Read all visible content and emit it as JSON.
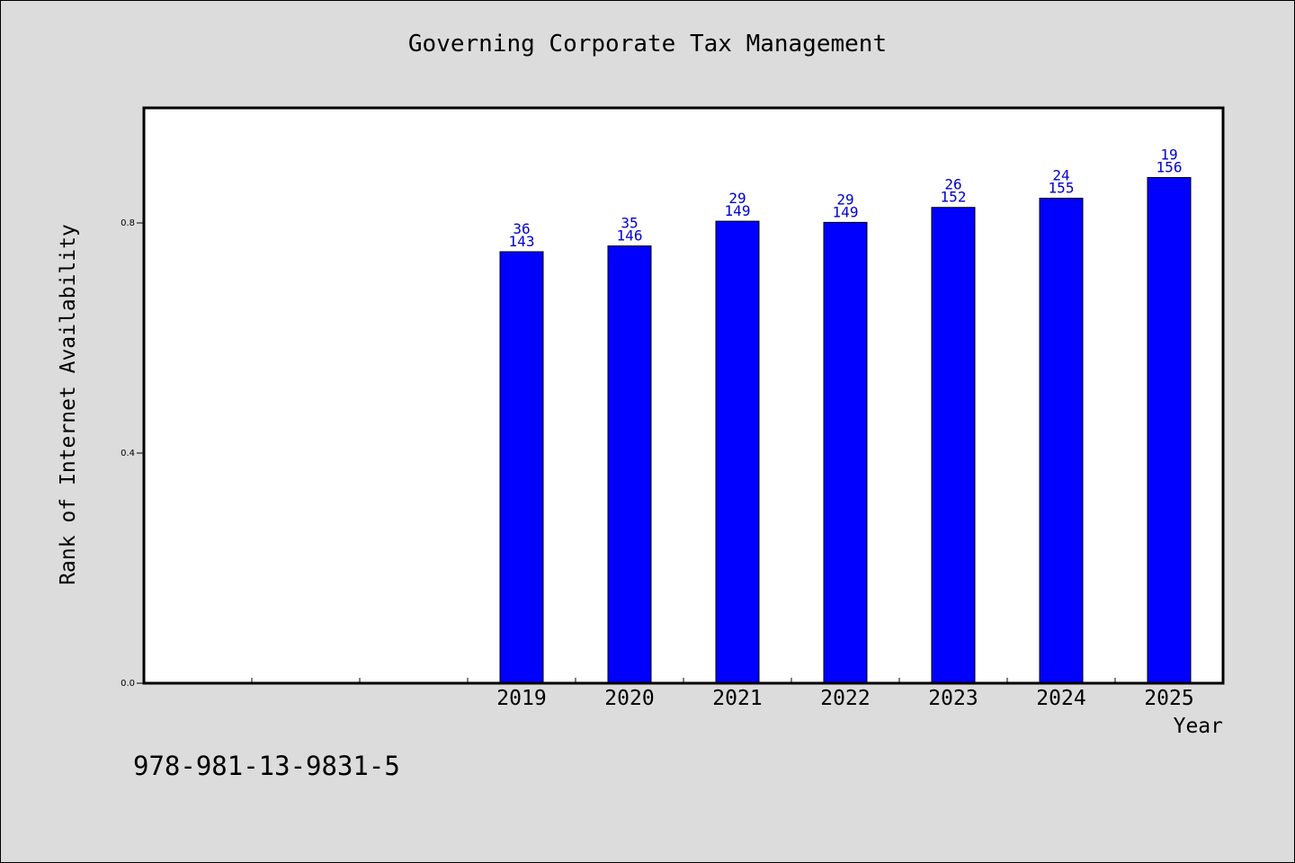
{
  "chart_data": {
    "type": "bar",
    "title": "Governing Corporate Tax Management",
    "xlabel": "Year",
    "ylabel": "Rank of Internet Availability",
    "categories": [
      "2019",
      "2020",
      "2021",
      "2022",
      "2023",
      "2024",
      "2025"
    ],
    "values": [
      0.75,
      0.76,
      0.803,
      0.801,
      0.827,
      0.843,
      0.879
    ],
    "label_top": [
      "36",
      "35",
      "29",
      "29",
      "26",
      "24",
      "19"
    ],
    "label_bottom": [
      "143",
      "146",
      "149",
      "149",
      "152",
      "155",
      "156"
    ],
    "yticks": [
      0.0,
      0.4,
      0.8
    ],
    "ytick_labels": [
      "0.0",
      "0.4",
      "0.8"
    ],
    "ylim": [
      0.0,
      1.0
    ],
    "x_slots": 10,
    "first_slot": 3,
    "bar_color": "#0000ff",
    "label_color": "#0000cc",
    "grid": false,
    "legend": "none"
  },
  "footer": {
    "isbn": "978-981-13-9831-5"
  }
}
